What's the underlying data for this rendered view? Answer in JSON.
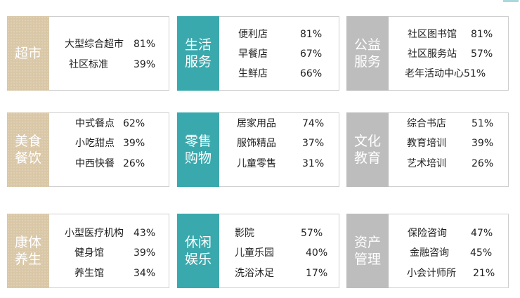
{
  "colors": {
    "supermarket_beige": "#d9c7a6",
    "teal": "#3aa9ad",
    "grey": "#bdbdbd"
  },
  "cards": [
    {
      "label": [
        "超市"
      ],
      "items": [
        {
          "name": "大型综合超市",
          "pct": "81%"
        },
        {
          "name": "社区标准",
          "pct": "39%"
        }
      ]
    },
    {
      "label": [
        "生活",
        "服务"
      ],
      "items": [
        {
          "name": "便利店",
          "pct": "81%"
        },
        {
          "name": "早餐店",
          "pct": "67%"
        },
        {
          "name": "生鲜店",
          "pct": "66%"
        }
      ]
    },
    {
      "label": [
        "公益",
        "服务"
      ],
      "items": [
        {
          "name": "社区图书馆",
          "pct": "81%"
        },
        {
          "name": "社区服务站",
          "pct": "57%"
        },
        {
          "name": "老年活动中心",
          "pct": "51%"
        }
      ]
    },
    {
      "label": [
        "美食",
        "餐饮"
      ],
      "items": [
        {
          "name": "中式餐点",
          "pct": "62%"
        },
        {
          "name": "小吃甜点",
          "pct": "39%"
        },
        {
          "name": "中西快餐",
          "pct": "26%"
        }
      ]
    },
    {
      "label": [
        "零售",
        "购物"
      ],
      "items": [
        {
          "name": "居家用品",
          "pct": "74%"
        },
        {
          "name": "服饰精品",
          "pct": "37%"
        },
        {
          "name": "儿童零售",
          "pct": "31%"
        }
      ]
    },
    {
      "label": [
        "文化",
        "教育"
      ],
      "items": [
        {
          "name": "综合书店",
          "pct": "51%"
        },
        {
          "name": "教育培训",
          "pct": "39%"
        },
        {
          "name": "艺术培训",
          "pct": "26%"
        }
      ]
    },
    {
      "label": [
        "康体",
        "养生"
      ],
      "items": [
        {
          "name": "小型医疗机构",
          "pct": "43%"
        },
        {
          "name": "健身馆",
          "pct": "39%"
        },
        {
          "name": "养生馆",
          "pct": "34%"
        }
      ]
    },
    {
      "label": [
        "休闲",
        "娱乐"
      ],
      "items": [
        {
          "name": "影院",
          "pct": "57%"
        },
        {
          "name": "儿童乐园",
          "pct": "40%"
        },
        {
          "name": "洗浴沐足",
          "pct": "17%"
        }
      ]
    },
    {
      "label": [
        "资产",
        "管理"
      ],
      "items": [
        {
          "name": "保险咨询",
          "pct": "47%"
        },
        {
          "name": "金融咨询",
          "pct": "45%"
        },
        {
          "name": "小会计师所",
          "pct": "21%"
        }
      ]
    }
  ]
}
